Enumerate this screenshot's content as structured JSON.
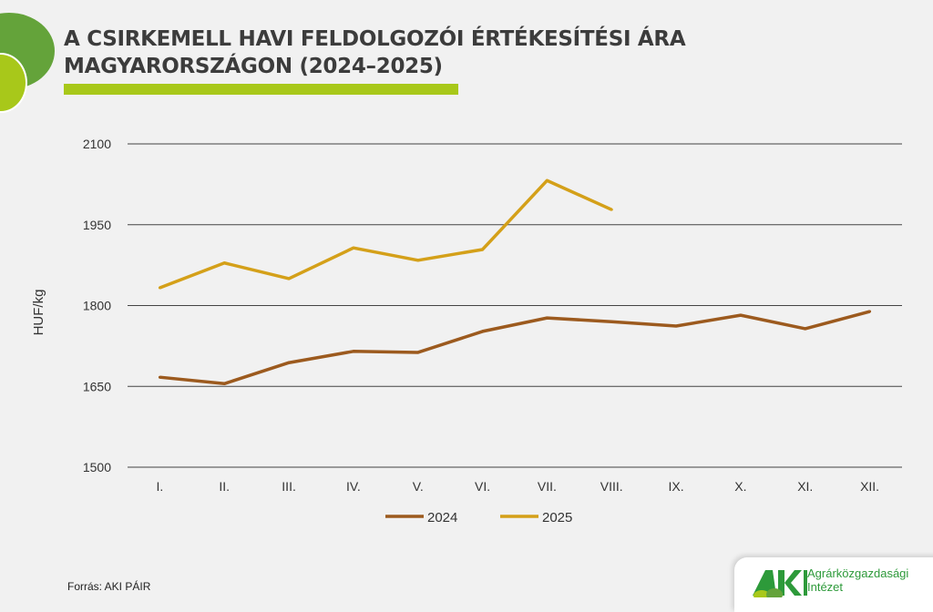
{
  "title_line1": "A CSIRKEMELL HAVI FELDOLGOZÓI ÉRTÉKESÍTÉSI ÁRA",
  "title_line2": "MAGYARORSZÁGON (2024–2025)",
  "source": "Forrás: AKI PÁIR",
  "logo": {
    "mark": "AKI",
    "line1": "Agrárközgazdasági",
    "line2": "Intézet"
  },
  "chart_data": {
    "type": "line",
    "title": "A CSIRKEMELL HAVI FELDOLGOZÓI ÉRTÉKESÍTÉSI ÁRA MAGYARORSZÁGON (2024–2025)",
    "xlabel": "",
    "ylabel": "HUF/kg",
    "ylim": [
      1500,
      2100
    ],
    "yticks": [
      1500,
      1650,
      1800,
      1950,
      2100
    ],
    "categories": [
      "I.",
      "II.",
      "III.",
      "IV.",
      "V.",
      "VI.",
      "VII.",
      "VIII.",
      "IX.",
      "X.",
      "XI.",
      "XII."
    ],
    "grid": true,
    "legend_position": "bottom",
    "series": [
      {
        "name": "2024",
        "color": "#9c5a1e",
        "values": [
          1667,
          1655,
          1694,
          1715,
          1713,
          1752,
          1777,
          1770,
          1762,
          1782,
          1757,
          1789
        ]
      },
      {
        "name": "2025",
        "color": "#d4a019",
        "values": [
          1833,
          1879,
          1850,
          1907,
          1884,
          1904,
          2032,
          1978,
          null,
          null,
          null,
          null
        ]
      }
    ]
  }
}
